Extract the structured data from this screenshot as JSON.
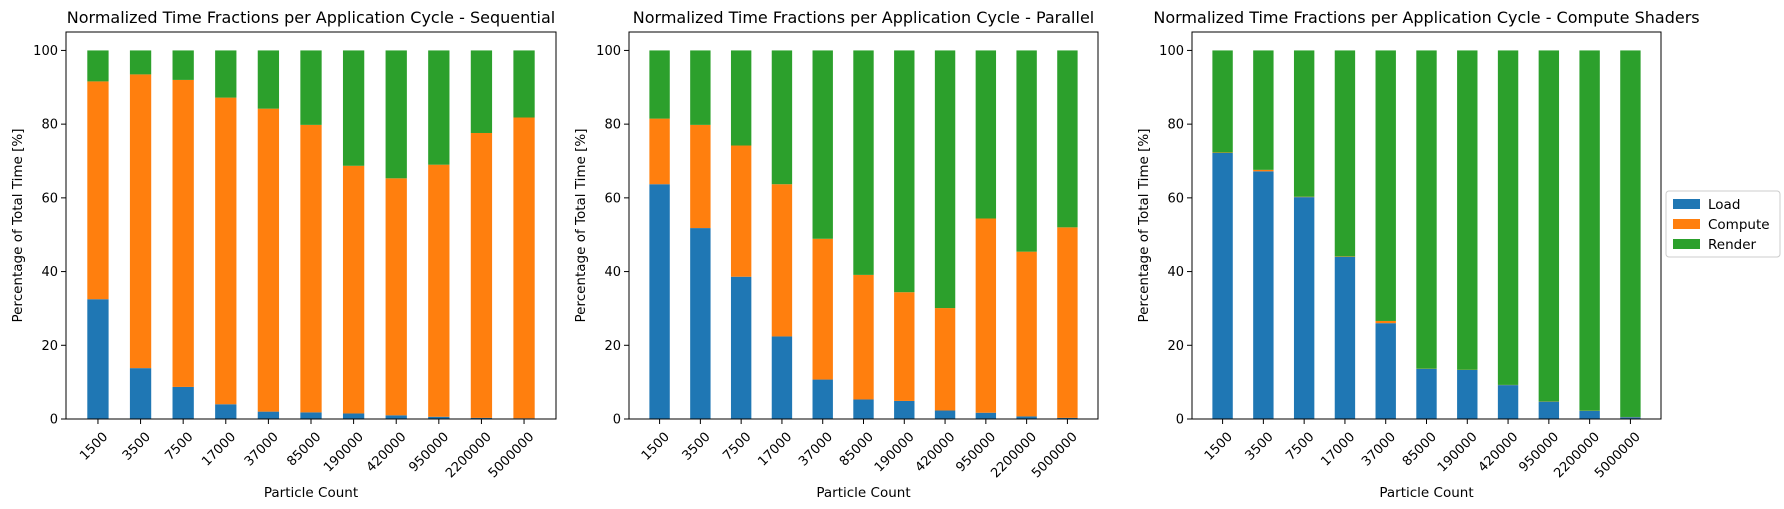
{
  "colors": {
    "Load": "#1f77b4",
    "Compute": "#ff7f0e",
    "Render": "#2ca02c"
  },
  "legend": {
    "placement": "center-right",
    "entries": [
      "Load",
      "Compute",
      "Render"
    ]
  },
  "chart_data": [
    {
      "type": "bar",
      "stacked": true,
      "title": "Normalized Time Fractions per Application Cycle - Sequential",
      "xlabel": "Particle Count",
      "ylabel": "Percentage of Total Time [%]",
      "ylim": [
        0,
        105
      ],
      "yticks": [
        0,
        20,
        40,
        60,
        80,
        100
      ],
      "categories": [
        "1500",
        "3500",
        "7500",
        "17000",
        "37000",
        "85000",
        "190000",
        "420000",
        "950000",
        "2200000",
        "5000000"
      ],
      "series": [
        {
          "name": "Load",
          "values": [
            32.5,
            13.8,
            8.7,
            4.0,
            2.0,
            1.8,
            1.5,
            1.0,
            0.6,
            0.3,
            0.2
          ]
        },
        {
          "name": "Compute",
          "values": [
            59.1,
            79.7,
            83.3,
            83.2,
            82.2,
            78.0,
            67.2,
            64.3,
            68.4,
            77.3,
            81.6
          ]
        },
        {
          "name": "Render",
          "values": [
            8.4,
            6.5,
            8.0,
            12.8,
            15.8,
            20.2,
            31.3,
            34.7,
            31.0,
            22.4,
            18.2
          ]
        }
      ]
    },
    {
      "type": "bar",
      "stacked": true,
      "title": "Normalized Time Fractions per Application Cycle - Parallel",
      "xlabel": "Particle Count",
      "ylabel": "Percentage of Total Time [%]",
      "ylim": [
        0,
        105
      ],
      "yticks": [
        0,
        20,
        40,
        60,
        80,
        100
      ],
      "categories": [
        "1500",
        "3500",
        "7500",
        "17000",
        "37000",
        "85000",
        "190000",
        "420000",
        "950000",
        "2200000",
        "5000000"
      ],
      "series": [
        {
          "name": "Load",
          "values": [
            63.7,
            51.8,
            38.6,
            22.4,
            10.7,
            5.3,
            4.9,
            2.3,
            1.7,
            0.7,
            0.3
          ]
        },
        {
          "name": "Compute",
          "values": [
            17.8,
            28.0,
            35.6,
            41.3,
            38.2,
            33.8,
            29.5,
            27.8,
            52.7,
            44.7,
            51.7
          ]
        },
        {
          "name": "Render",
          "values": [
            18.5,
            20.2,
            25.8,
            36.3,
            51.1,
            60.9,
            65.6,
            69.9,
            45.6,
            54.6,
            48.0
          ]
        }
      ]
    },
    {
      "type": "bar",
      "stacked": true,
      "title": "Normalized Time Fractions per Application Cycle - Compute Shaders",
      "xlabel": "Particle Count",
      "ylabel": "Percentage of Total Time [%]",
      "ylim": [
        0,
        105
      ],
      "yticks": [
        0,
        20,
        40,
        60,
        80,
        100
      ],
      "categories": [
        "1500",
        "3500",
        "7500",
        "17000",
        "37000",
        "85000",
        "190000",
        "420000",
        "950000",
        "2200000",
        "5000000"
      ],
      "series": [
        {
          "name": "Load",
          "values": [
            72.2,
            67.2,
            60.2,
            44.0,
            26.0,
            13.6,
            13.3,
            9.2,
            4.7,
            2.2,
            0.5
          ]
        },
        {
          "name": "Compute",
          "values": [
            0.1,
            0.4,
            0.1,
            0.1,
            0.6,
            0.05,
            0.05,
            0.05,
            0.05,
            0.05,
            0.05
          ]
        },
        {
          "name": "Render",
          "values": [
            27.7,
            32.4,
            39.7,
            55.9,
            73.4,
            86.35,
            86.65,
            90.75,
            95.25,
            97.75,
            99.45
          ]
        }
      ]
    }
  ]
}
